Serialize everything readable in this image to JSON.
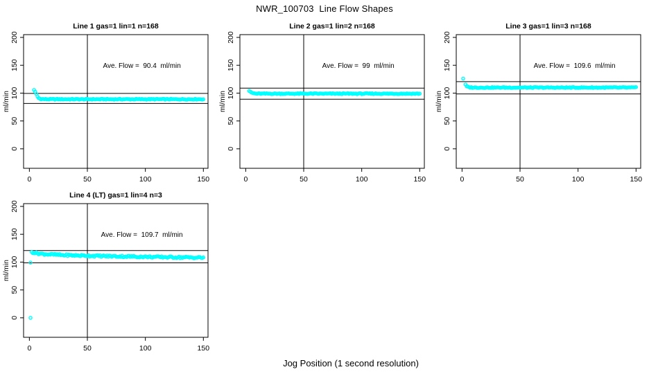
{
  "figure": {
    "main_title": "NWR_100703  Line Flow Shapes",
    "x_axis_label": "Jog Position (1 second resolution)",
    "y_axis_label": "ml/min",
    "point_color": "#00ffff",
    "line_color": "#000000",
    "background_color": "#ffffff"
  },
  "axes": {
    "x_ticks": [
      0,
      50,
      100,
      150
    ],
    "y_ticks": [
      0,
      50,
      100,
      150,
      200
    ],
    "xlim_draw": [
      -5,
      154
    ],
    "ylim_draw": [
      -35,
      205
    ],
    "x_range": [
      0,
      150
    ],
    "y_range": [
      0,
      200
    ],
    "grid": "off",
    "legend": "none"
  },
  "chart_data": [
    {
      "type": "scatter",
      "title": "Line 1 gas=1 lin=1 n=168",
      "line_number": 1,
      "gas": 1,
      "lin": 1,
      "n": 168,
      "annotation": "Ave. Flow =  90.4  ml/min",
      "ave_flow_ml_min": 90.4,
      "ylabel": "ml/min",
      "vline_x": 50,
      "hline_upper": 99.4,
      "hline_lower": 81.4,
      "annotation_pos": [
        97,
        150
      ],
      "x_start": 4,
      "x_end": 150,
      "profile": [
        [
          4,
          106
        ],
        [
          5,
          102
        ],
        [
          6,
          98
        ],
        [
          7,
          94
        ],
        [
          8,
          91
        ],
        [
          10,
          89.5
        ],
        [
          14,
          89
        ],
        [
          150,
          89
        ]
      ],
      "outliers": [],
      "jitter": 1.6,
      "seed": 1
    },
    {
      "type": "scatter",
      "title": "Line 2 gas=1 lin=2 n=168",
      "line_number": 2,
      "gas": 1,
      "lin": 2,
      "n": 168,
      "annotation": "Ave. Flow =  99  ml/min",
      "ave_flow_ml_min": 99,
      "ylabel": "ml/min",
      "vline_x": 50,
      "hline_upper": 108.9,
      "hline_lower": 89.1,
      "annotation_pos": [
        97,
        150
      ],
      "x_start": 3,
      "x_end": 150,
      "profile": [
        [
          3,
          104
        ],
        [
          4,
          102
        ],
        [
          6,
          100
        ],
        [
          9,
          99
        ],
        [
          150,
          99
        ]
      ],
      "outliers": [],
      "jitter": 1.6,
      "seed": 2
    },
    {
      "type": "scatter",
      "title": "Line 3 gas=1 lin=3 n=168",
      "line_number": 3,
      "gas": 1,
      "lin": 3,
      "n": 168,
      "annotation": "Ave. Flow =  109.6  ml/min",
      "ave_flow_ml_min": 109.6,
      "ylabel": "ml/min",
      "vline_x": 50,
      "hline_upper": 120.6,
      "hline_lower": 98.6,
      "annotation_pos": [
        97,
        150
      ],
      "x_start": 3,
      "x_end": 150,
      "profile": [
        [
          3,
          115
        ],
        [
          4,
          112
        ],
        [
          6,
          110.5
        ],
        [
          10,
          110
        ],
        [
          150,
          110
        ]
      ],
      "outliers": [
        [
          1,
          126
        ]
      ],
      "jitter": 1.6,
      "seed": 3
    },
    {
      "type": "scatter",
      "title": "Line 4 (LT) gas=1 lin=4 n=3",
      "line_number": 4,
      "line_note": "LT",
      "gas": 1,
      "lin": 4,
      "n": 3,
      "annotation": "Ave. Flow =  109.7  ml/min",
      "ave_flow_ml_min": 109.7,
      "ylabel": "ml/min",
      "vline_x": 50,
      "hline_upper": 120.7,
      "hline_lower": 98.7,
      "annotation_pos": [
        97,
        150
      ],
      "x_start": 2,
      "x_end": 150,
      "profile": [
        [
          2,
          118
        ],
        [
          5,
          116.5
        ],
        [
          12,
          114.5
        ],
        [
          30,
          112.5
        ],
        [
          60,
          111
        ],
        [
          100,
          109.5
        ],
        [
          150,
          108
        ]
      ],
      "outliers": [
        [
          1,
          0
        ],
        [
          1,
          99
        ]
      ],
      "jitter": 3,
      "seed": 4
    }
  ]
}
